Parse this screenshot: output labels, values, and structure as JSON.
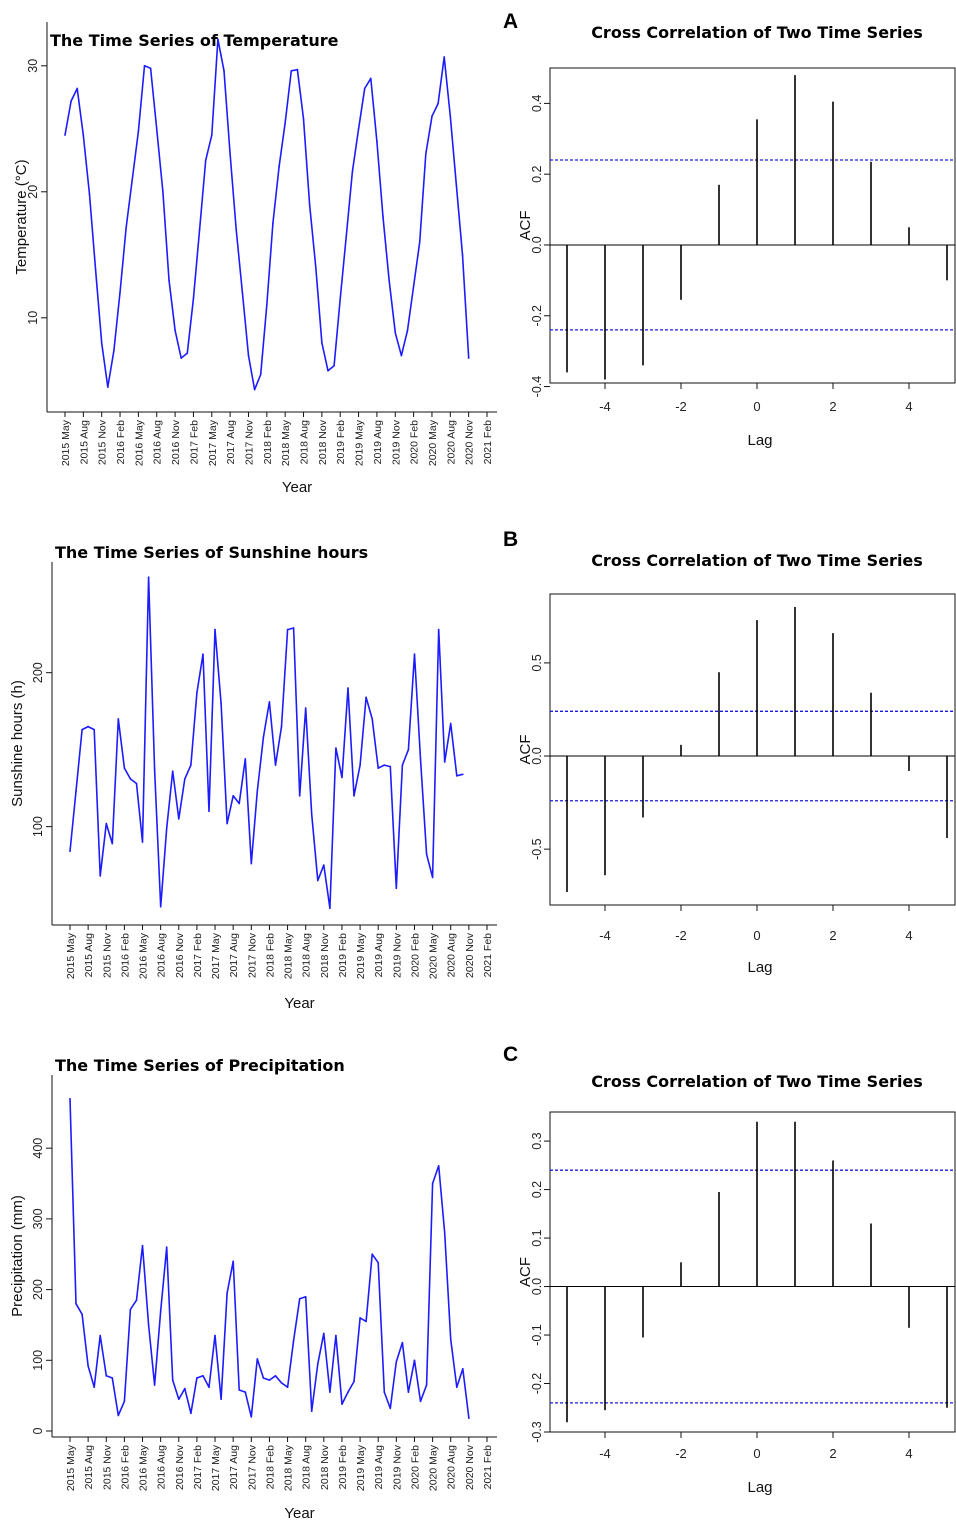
{
  "chart_data": [
    {
      "type": "line",
      "title": "The Time Series of Temperature",
      "xlabel": "Year",
      "ylabel": "Temperature  (°C)",
      "xticks": [
        "2015 May",
        "2015 Aug",
        "2015 Nov",
        "2016 Feb",
        "2016 May",
        "2016 Aug",
        "2016 Nov",
        "2017 Feb",
        "2017 May",
        "2017 Aug",
        "2017 Nov",
        "2018 Feb",
        "2018 May",
        "2018 Aug",
        "2018 Nov",
        "2019 Feb",
        "2019 May",
        "2019 Aug",
        "2019 Nov",
        "2020 Feb",
        "2020 May",
        "2020 Aug",
        "2020 Nov",
        "2021 Feb"
      ],
      "yticks": [
        "10",
        "20",
        "30"
      ],
      "ylim": [
        3,
        33
      ],
      "start": "2015 May",
      "values": [
        24.5,
        27.2,
        28.2,
        24.5,
        19.8,
        13.8,
        8.0,
        4.5,
        7.4,
        12.0,
        17.2,
        21.0,
        24.8,
        30.0,
        29.8,
        25.0,
        20.0,
        13.0,
        9.0,
        6.8,
        7.2,
        11.5,
        17.0,
        22.5,
        24.5,
        32.1,
        29.6,
        23.0,
        17.0,
        12.0,
        7.0,
        4.3,
        5.5,
        11.0,
        17.5,
        22.0,
        25.5,
        29.6,
        29.7,
        25.8,
        19.0,
        14.0,
        8.0,
        5.8,
        6.2,
        11.5,
        16.5,
        21.6,
        25.0,
        28.2,
        29.0,
        24.0,
        18.0,
        13.0,
        8.8,
        7.0,
        9.0,
        12.5,
        16.0,
        23.0,
        26.0,
        27.0,
        30.7,
        26.0,
        20.5,
        15.0,
        6.8
      ]
    },
    {
      "type": "bar",
      "panel_label": "A",
      "title": "Cross Correlation of Two Time Series",
      "xlabel": "Lag",
      "ylabel": "ACF",
      "xticks": [
        "-4",
        "-2",
        "0",
        "2",
        "4"
      ],
      "yticks": [
        "-0.4",
        "-0.2",
        "0.0",
        "0.2",
        "0.4"
      ],
      "ylim": [
        -0.39,
        0.5
      ],
      "lags": [
        -5,
        -4,
        -3,
        -2,
        -1,
        0,
        1,
        2,
        3,
        4,
        5
      ],
      "values": [
        -0.36,
        -0.38,
        -0.34,
        -0.155,
        0.17,
        0.355,
        0.48,
        0.405,
        0.235,
        0.05,
        -0.1
      ],
      "confidence_band": 0.24
    },
    {
      "type": "line",
      "title": "The Time Series of Sunshine hours",
      "xlabel": "Year",
      "ylabel": "Sunshine hours    (h)",
      "xticks": [
        "2015 May",
        "2015 Aug",
        "2015 Nov",
        "2016 Feb",
        "2016 May",
        "2016 Aug",
        "2016 Nov",
        "2017 Feb",
        "2017 May",
        "2017 Aug",
        "2017 Nov",
        "2018 Feb",
        "2018 May",
        "2018 Aug",
        "2018 Nov",
        "2019 Feb",
        "2019 May",
        "2019 Aug",
        "2019 Nov",
        "2020 Feb",
        "2020 May",
        "2020 Aug",
        "2020 Nov",
        "2021 Feb"
      ],
      "yticks": [
        "100",
        "200"
      ],
      "ylim": [
        40,
        268
      ],
      "start": "2015 May",
      "values": [
        84,
        123,
        163,
        165,
        163,
        68,
        102,
        89,
        170,
        138,
        131,
        128,
        90,
        262,
        137,
        48,
        99,
        136,
        105,
        131,
        140,
        187,
        212,
        110,
        228,
        180,
        102,
        120,
        115,
        144,
        76,
        123,
        158,
        181,
        140,
        165,
        228,
        229,
        120,
        177,
        108,
        65,
        75,
        47,
        151,
        132,
        190,
        120,
        140,
        184,
        170,
        138,
        140,
        139,
        60,
        140,
        150,
        212,
        144,
        82,
        67,
        228,
        142,
        167,
        133,
        134
      ]
    },
    {
      "type": "bar",
      "panel_label": "B",
      "title": "Cross Correlation of Two Time Series",
      "xlabel": "Lag",
      "ylabel": "ACF",
      "xticks": [
        "-4",
        "-2",
        "0",
        "2",
        "4"
      ],
      "yticks": [
        "-0.5",
        "0.0",
        "0.5"
      ],
      "ylim": [
        -0.8,
        0.87
      ],
      "lags": [
        -5,
        -4,
        -3,
        -2,
        -1,
        0,
        1,
        2,
        3,
        4,
        5
      ],
      "values": [
        -0.73,
        -0.64,
        -0.33,
        0.06,
        0.45,
        0.73,
        0.8,
        0.66,
        0.34,
        -0.08,
        -0.44
      ],
      "confidence_band": 0.24
    },
    {
      "type": "line",
      "title": "The Time Series of Precipitation",
      "xlabel": "Year",
      "ylabel": "Precipitation  (mm)",
      "xticks": [
        "2015 May",
        "2015 Aug",
        "2015 Nov",
        "2016 Feb",
        "2016 May",
        "2016 Aug",
        "2016 Nov",
        "2017 Feb",
        "2017 May",
        "2017 Aug",
        "2017 Nov",
        "2018 Feb",
        "2018 May",
        "2018 Aug",
        "2018 Nov",
        "2019 Feb",
        "2019 May",
        "2019 Aug",
        "2019 Nov",
        "2020 Feb",
        "2020 May",
        "2020 Aug",
        "2020 Nov",
        "2021 Feb"
      ],
      "yticks": [
        "0",
        "100",
        "200",
        "300",
        "400"
      ],
      "ylim": [
        0,
        495
      ],
      "start": "2015 May",
      "values": [
        470,
        180,
        165,
        92,
        62,
        135,
        78,
        75,
        22,
        42,
        172,
        185,
        262,
        150,
        65,
        170,
        260,
        72,
        45,
        60,
        25,
        75,
        78,
        62,
        135,
        45,
        195,
        240,
        58,
        55,
        20,
        102,
        75,
        72,
        78,
        68,
        62,
        128,
        187,
        190,
        28,
        95,
        138,
        55,
        135,
        38,
        55,
        70,
        160,
        155,
        250,
        238,
        55,
        32,
        98,
        125,
        55,
        100,
        42,
        65,
        350,
        375,
        280,
        130,
        62,
        88,
        18
      ]
    },
    {
      "type": "bar",
      "panel_label": "C",
      "title": "Cross Correlation of Two Time Series",
      "xlabel": "Lag",
      "ylabel": "ACF",
      "xticks": [
        "-4",
        "-2",
        "0",
        "2",
        "4"
      ],
      "yticks": [
        "-0.3",
        "-0.2",
        "-0.1",
        "0.0",
        "0.1",
        "0.2",
        "0.3"
      ],
      "ylim": [
        -0.3,
        0.36
      ],
      "lags": [
        -5,
        -4,
        -3,
        -2,
        -1,
        0,
        1,
        2,
        3,
        4,
        5
      ],
      "values": [
        -0.28,
        -0.255,
        -0.105,
        0.05,
        0.195,
        0.34,
        0.34,
        0.26,
        0.13,
        -0.085,
        -0.25
      ],
      "confidence_band": 0.24
    }
  ]
}
